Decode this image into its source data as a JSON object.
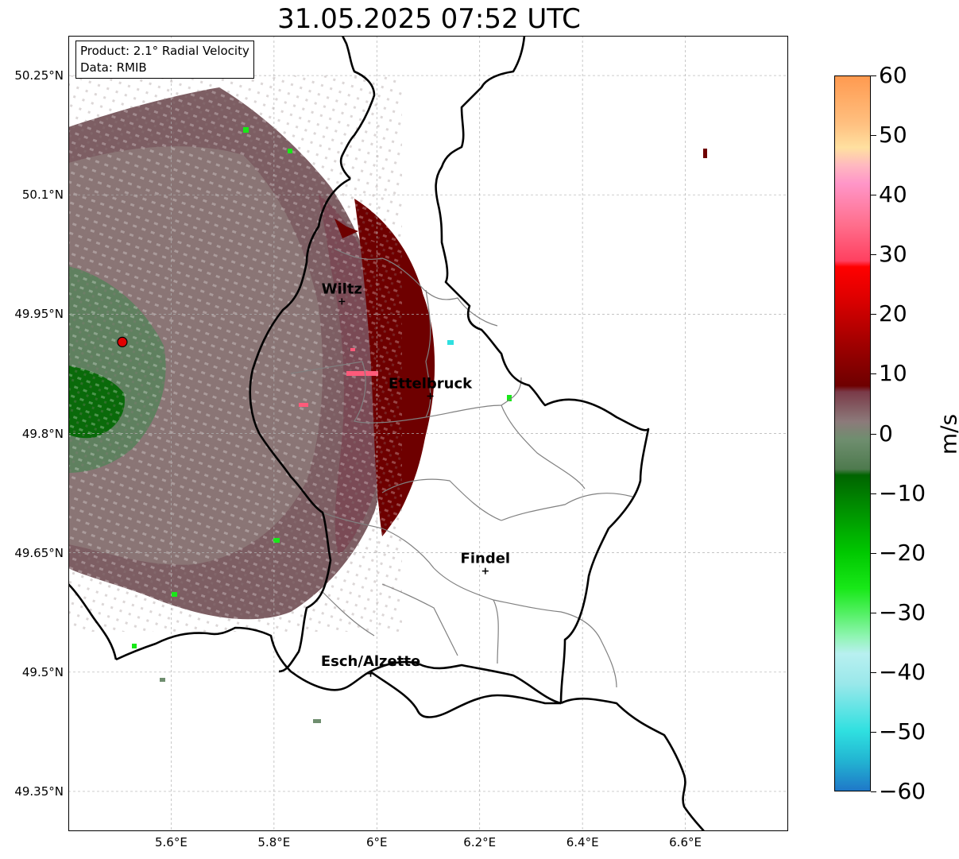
{
  "title": "31.05.2025 07:52 UTC",
  "info": {
    "product": "Product: 2.1° Radial Velocity",
    "data": "Data: RMIB"
  },
  "map": {
    "lon_range": [
      5.4,
      6.8
    ],
    "lat_range": [
      49.3,
      50.3
    ],
    "lon_ticks": [
      "5.6°E",
      "5.8°E",
      "6°E",
      "6.2°E",
      "6.4°E",
      "6.6°E"
    ],
    "lat_ticks": [
      "50.25°N",
      "50.1°N",
      "49.95°N",
      "49.8°N",
      "49.65°N",
      "49.5°N",
      "49.35°N"
    ],
    "radar_site": {
      "lon": 5.505,
      "lat": 49.915
    },
    "cities": [
      {
        "name": "Wiltz",
        "lon": 5.932,
        "lat": 49.966
      },
      {
        "name": "Ettelbruck",
        "lon": 6.104,
        "lat": 49.847
      },
      {
        "name": "Findel",
        "lon": 6.211,
        "lat": 49.627
      },
      {
        "name": "Esch/Alzette",
        "lon": 5.988,
        "lat": 49.498
      }
    ]
  },
  "colorbar": {
    "label": "m/s",
    "vmin": -60,
    "vmax": 60,
    "ticks": [
      "60",
      "50",
      "40",
      "30",
      "20",
      "10",
      "0",
      "−10",
      "−20",
      "−30",
      "−40",
      "−50",
      "−60"
    ],
    "stops": [
      {
        "v": -60,
        "c": "#1f78c8"
      },
      {
        "v": -55,
        "c": "#22b4d2"
      },
      {
        "v": -50,
        "c": "#2fe0e0"
      },
      {
        "v": -42,
        "c": "#9ae8ea"
      },
      {
        "v": -37,
        "c": "#b8f0f0"
      },
      {
        "v": -34,
        "c": "#8ef5b0"
      },
      {
        "v": -30,
        "c": "#50f060"
      },
      {
        "v": -26,
        "c": "#18e818"
      },
      {
        "v": -20,
        "c": "#00c800"
      },
      {
        "v": -14,
        "c": "#009a00"
      },
      {
        "v": -7,
        "c": "#006400"
      },
      {
        "v": -6,
        "c": "#4e7a4e"
      },
      {
        "v": -1,
        "c": "#6f8e6f"
      },
      {
        "v": 2,
        "c": "#8c7a7a"
      },
      {
        "v": 7,
        "c": "#7a3a48"
      },
      {
        "v": 8,
        "c": "#6e0000"
      },
      {
        "v": 15,
        "c": "#a00000"
      },
      {
        "v": 23,
        "c": "#e00000"
      },
      {
        "v": 28,
        "c": "#ff0000"
      },
      {
        "v": 29,
        "c": "#ff4060"
      },
      {
        "v": 35,
        "c": "#ff6e8c"
      },
      {
        "v": 42,
        "c": "#ff96c8"
      },
      {
        "v": 45,
        "c": "#ffb8c0"
      },
      {
        "v": 48,
        "c": "#ffe0a0"
      },
      {
        "v": 52,
        "c": "#ffc080"
      },
      {
        "v": 60,
        "c": "#ff9a50"
      }
    ]
  }
}
